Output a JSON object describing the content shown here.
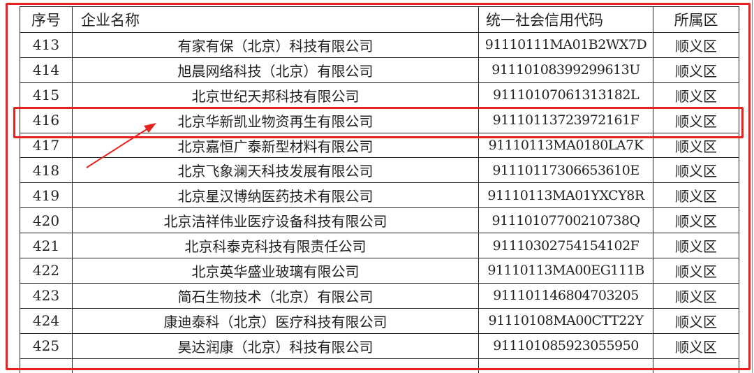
{
  "table": {
    "headers": [
      "序号",
      "企业名称",
      "统一社会信用代码",
      "所属区"
    ],
    "rows": [
      [
        "413",
        "有家有保（北京）科技有限公司",
        "91110111MA01B2WX7D",
        "顺义区"
      ],
      [
        "414",
        "旭晨网络科技（北京）有限公司",
        "91110108399299613U",
        "顺义区"
      ],
      [
        "415",
        "北京世纪天邦科技有限公司",
        "91110107061313182L",
        "顺义区"
      ],
      [
        "416",
        "北京华新凯业物资再生有限公司",
        "91110113723972161F",
        "顺义区"
      ],
      [
        "417",
        "北京嘉恒广泰新型材料有限公司",
        "91110113MA0180LA7K",
        "顺义区"
      ],
      [
        "418",
        "北京飞象澜天科技发展有限公司",
        "91110117306653610E",
        "顺义区"
      ],
      [
        "419",
        "北京星汉博纳医药技术有限公司",
        "91110113MA01YXCY8R",
        "顺义区"
      ],
      [
        "420",
        "北京洁祥伟业医疗设备科技有限公司",
        "91110107700210738Q",
        "顺义区"
      ],
      [
        "421",
        "北京科泰克科技有限责任公司",
        "91110302754154102F",
        "顺义区"
      ],
      [
        "422",
        "北京英华盛业玻璃有限公司",
        "91110113MA00EG111B",
        "顺义区"
      ],
      [
        "423",
        "简石生物技术（北京）有限公司",
        "91110114680470320５",
        "顺义区"
      ],
      [
        "424",
        "康迪泰科（北京）医疗科技有限公司",
        "91110108MA00CTT22Y",
        "顺义区"
      ],
      [
        "425",
        "昊达润康（北京）科技有限公司",
        "91110108592305595０",
        "顺义区"
      ]
    ],
    "highlighted_row": "416"
  },
  "colors": {
    "annotation": "#e8231e",
    "border": "#222222"
  }
}
